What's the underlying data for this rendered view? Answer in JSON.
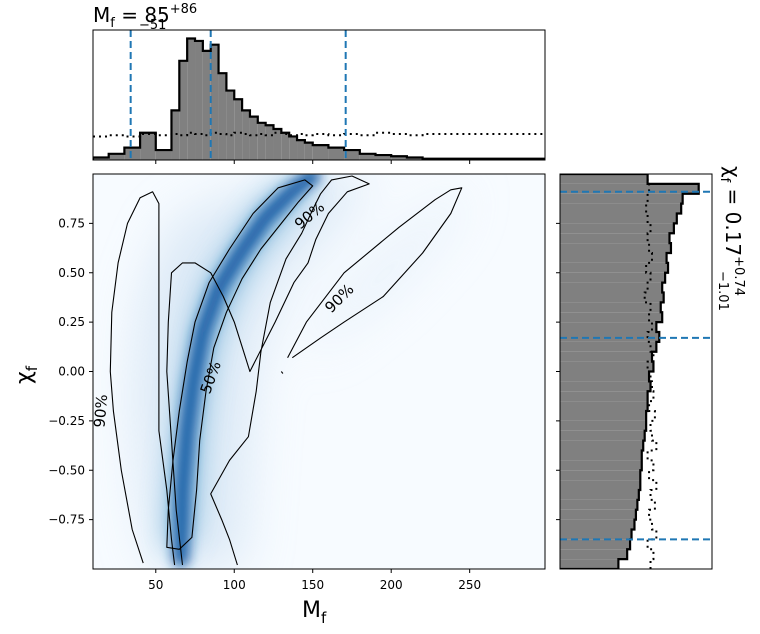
{
  "chart_data": [
    {
      "panel": "top-marginal",
      "type": "histogram",
      "title": {
        "base": "M",
        "sub": "f",
        "eq": " = 85",
        "sup": "+86",
        "low": "−51"
      },
      "xlim": [
        10,
        298
      ],
      "x_ticks": [
        50,
        100,
        150,
        200,
        250
      ],
      "bin_edges": [
        10,
        20,
        30,
        40,
        50,
        60,
        65,
        70,
        75,
        80,
        85,
        90,
        95,
        100,
        105,
        110,
        115,
        120,
        125,
        130,
        135,
        140,
        145,
        150,
        160,
        170,
        180,
        190,
        200,
        210,
        220,
        298
      ],
      "posterior_density": [
        0.02,
        0.05,
        0.1,
        0.22,
        0.08,
        0.4,
        0.8,
        0.98,
        0.96,
        0.88,
        0.93,
        0.7,
        0.56,
        0.49,
        0.4,
        0.35,
        0.3,
        0.28,
        0.25,
        0.22,
        0.19,
        0.16,
        0.14,
        0.12,
        0.1,
        0.08,
        0.05,
        0.04,
        0.03,
        0.02,
        0.01
      ],
      "prior_density": [
        0.19,
        0.2,
        0.19,
        0.21,
        0.2,
        0.21,
        0.2,
        0.22,
        0.21,
        0.2,
        0.22,
        0.21,
        0.2,
        0.22,
        0.21,
        0.2,
        0.21,
        0.2,
        0.22,
        0.21,
        0.2,
        0.21,
        0.2,
        0.21,
        0.2,
        0.21,
        0.2,
        0.22,
        0.21,
        0.2,
        0.21
      ],
      "credible_lines": [
        34,
        85,
        171
      ],
      "colors": {
        "fill": "#808080",
        "edge": "#000000",
        "credible": "#1f77b4"
      }
    },
    {
      "panel": "joint",
      "type": "heatmap",
      "xlabel": {
        "base": "M",
        "sub": "f"
      },
      "ylabel": {
        "base": "χ",
        "sub": "f"
      },
      "xlim": [
        10,
        298
      ],
      "ylim": [
        -1,
        1
      ],
      "x_ticks": [
        50,
        100,
        150,
        200,
        250
      ],
      "y_ticks": [
        -0.75,
        -0.5,
        -0.25,
        0.0,
        0.25,
        0.5,
        0.75
      ],
      "y_tick_labels": [
        "−0.75",
        "−0.50",
        "−0.25",
        "0.00",
        "0.25",
        "0.50",
        "0.75"
      ],
      "contours": [
        {
          "level": "50%",
          "paths": [
            {
              "points": [
                [
                  57,
                  -0.89
                ],
                [
                  58,
                  -0.7
                ],
                [
                  61,
                  -0.45
                ],
                [
                  65,
                  -0.2
                ],
                [
                  70,
                  0.05
                ],
                [
                  75,
                  0.25
                ],
                [
                  84,
                  0.45
                ],
                [
                  97,
                  0.62
                ],
                [
                  112,
                  0.8
                ],
                [
                  128,
                  0.93
                ],
                [
                  145,
                  0.97
                ],
                [
                  150,
                  0.94
                ],
                [
                  141,
                  0.86
                ],
                [
                  130,
                  0.75
                ],
                [
                  117,
                  0.62
                ],
                [
                  105,
                  0.47
                ],
                [
                  95,
                  0.3
                ],
                [
                  87,
                  0.12
                ],
                [
                  82,
                  -0.1
                ],
                [
                  78,
                  -0.35
                ],
                [
                  76,
                  -0.6
                ],
                [
                  73,
                  -0.84
                ],
                [
                  65,
                  -0.9
                ],
                [
                  57,
                  -0.89
                ]
              ],
              "closed": true
            }
          ]
        },
        {
          "level": "90%",
          "paths": [
            {
              "points": [
                [
                  42,
                  -0.97
                ],
                [
                  35,
                  -0.8
                ],
                [
                  28,
                  -0.5
                ],
                [
                  23,
                  -0.2
                ],
                [
                  21,
                  0.0
                ],
                [
                  22,
                  0.3
                ],
                [
                  26,
                  0.55
                ],
                [
                  32,
                  0.75
                ],
                [
                  40,
                  0.88
                ],
                [
                  48,
                  0.91
                ],
                [
                  52,
                  0.85
                ],
                [
                  52,
                  0.3
                ],
                [
                  52,
                  -0.3
                ],
                [
                  57,
                  -0.6
                ],
                [
                  60,
                  -0.85
                ],
                [
                  62,
                  -0.98
                ]
              ],
              "closed": false
            },
            {
              "points": [
                [
                  134,
                  0.07
                ],
                [
                  146,
                  0.25
                ],
                [
                  170,
                  0.5
                ],
                [
                  205,
                  0.73
                ],
                [
                  228,
                  0.87
                ],
                [
                  238,
                  0.92
                ],
                [
                  245,
                  0.93
                ],
                [
                  238,
                  0.8
                ],
                [
                  220,
                  0.6
                ],
                [
                  195,
                  0.38
                ],
                [
                  170,
                  0.25
                ],
                [
                  155,
                  0.17
                ],
                [
                  137,
                  0.07
                ]
              ],
              "closed": false
            },
            {
              "points": [
                [
                  131,
                  -0.01
                ],
                [
                  130,
                  0.0
                ]
              ],
              "closed": false
            },
            {
              "points": [
                [
                  102,
                  -0.98
                ],
                [
                  97,
                  -0.85
                ],
                [
                  92,
                  -0.75
                ],
                [
                  85,
                  -0.62
                ],
                [
                  97,
                  -0.45
                ],
                [
                  109,
                  -0.33
                ],
                [
                  114,
                  -0.1
                ],
                [
                  117,
                  0.1
                ],
                [
                  123,
                  0.35
                ],
                [
                  133,
                  0.57
                ],
                [
                  143,
                  0.7
                ],
                [
                  150,
                  0.82
                ],
                [
                  155,
                  0.9
                ],
                [
                  162,
                  0.97
                ],
                [
                  175,
                  0.99
                ],
                [
                  186,
                  0.95
                ],
                [
                  172,
                  0.91
                ],
                [
                  160,
                  0.8
                ],
                [
                  152,
                  0.67
                ],
                [
                  147,
                  0.55
                ],
                [
                  138,
                  0.45
                ],
                [
                  126,
                  0.25
                ],
                [
                  110,
                  0.0
                ],
                [
                  106,
                  0.1
                ],
                [
                  100,
                  0.25
                ],
                [
                  93,
                  0.38
                ],
                [
                  85,
                  0.5
                ],
                [
                  75,
                  0.55
                ],
                [
                  67,
                  0.55
                ],
                [
                  60,
                  0.5
                ],
                [
                  58,
                  0.25
                ],
                [
                  57,
                  0.0
                ],
                [
                  60,
                  -0.35
                ],
                [
                  63,
                  -0.7
                ],
                [
                  67,
                  -0.98
                ]
              ],
              "closed": false
            }
          ]
        }
      ],
      "contour_labels": [
        {
          "text": "90%",
          "x": 148,
          "y": 0.79,
          "angle": -40
        },
        {
          "text": "90%",
          "x": 167,
          "y": 0.37,
          "angle": -45
        },
        {
          "text": "50%",
          "x": 85,
          "y": -0.03,
          "angle": -70
        },
        {
          "text": "90%",
          "x": 15,
          "y": -0.2,
          "angle": -85
        }
      ],
      "colormap": "Blues"
    },
    {
      "panel": "right-marginal",
      "type": "histogram",
      "orientation": "horizontal",
      "side_label": {
        "base": "χ",
        "sub": "f",
        "eq": " = 0.17",
        "sup": "+0.74",
        "low": "−1.01"
      },
      "ylim": [
        -1,
        1
      ],
      "bin_edges": [
        -1.0,
        -0.95,
        -0.9,
        -0.85,
        -0.8,
        -0.75,
        -0.7,
        -0.65,
        -0.6,
        -0.55,
        -0.5,
        -0.45,
        -0.4,
        -0.35,
        -0.3,
        -0.25,
        -0.2,
        -0.15,
        -0.1,
        -0.05,
        0.0,
        0.05,
        0.1,
        0.15,
        0.2,
        0.25,
        0.3,
        0.35,
        0.4,
        0.45,
        0.5,
        0.55,
        0.6,
        0.65,
        0.7,
        0.75,
        0.8,
        0.85,
        0.9,
        0.95,
        1.0
      ],
      "posterior_density": [
        0.4,
        0.46,
        0.48,
        0.49,
        0.51,
        0.52,
        0.53,
        0.54,
        0.55,
        0.55,
        0.56,
        0.56,
        0.57,
        0.58,
        0.59,
        0.59,
        0.6,
        0.6,
        0.62,
        0.61,
        0.64,
        0.63,
        0.66,
        0.68,
        0.66,
        0.7,
        0.69,
        0.71,
        0.7,
        0.72,
        0.74,
        0.73,
        0.76,
        0.75,
        0.78,
        0.8,
        0.83,
        0.84,
        0.95,
        0.6
      ],
      "prior_density": [
        0.62,
        0.64,
        0.6,
        0.66,
        0.63,
        0.61,
        0.65,
        0.62,
        0.66,
        0.61,
        0.64,
        0.6,
        0.66,
        0.63,
        0.62,
        0.65,
        0.61,
        0.64,
        0.63,
        0.62,
        0.6,
        0.64,
        0.62,
        0.6,
        0.63,
        0.61,
        0.62,
        0.58,
        0.6,
        0.62,
        0.59,
        0.63,
        0.61,
        0.6,
        0.62,
        0.6,
        0.59,
        0.6,
        0.61,
        0.6
      ],
      "credible_lines": [
        -0.85,
        0.17,
        0.91
      ],
      "colors": {
        "fill": "#808080",
        "edge": "#000000",
        "credible": "#1f77b4"
      }
    }
  ]
}
